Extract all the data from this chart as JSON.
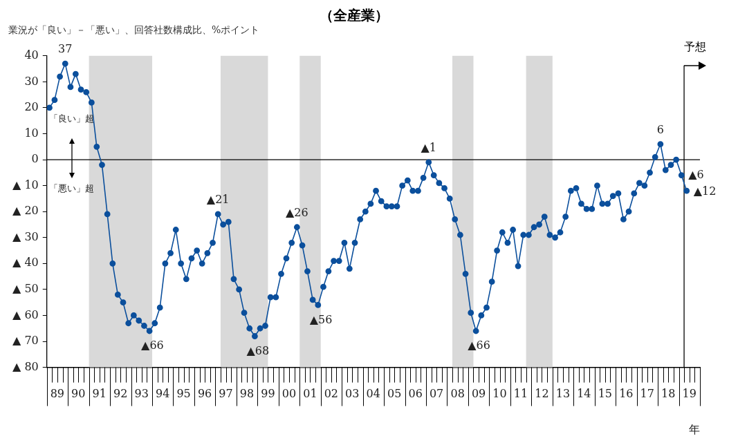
{
  "chart_data": {
    "type": "line",
    "title": "（全産業）",
    "subtitle": "業況が「良い」－「悪い」、回答社数構成比、%ポイント",
    "xlabel": "年",
    "x": [
      "1989-02-15",
      "1989-05-15",
      "1989-08-15",
      "1989-11-15",
      "1990-02-15",
      "1990-05-15",
      "1990-08-15",
      "1990-11-15",
      "1991-02-15",
      "1991-05-15",
      "1991-08-15",
      "1991-11-15",
      "1992-02-15",
      "1992-05-15",
      "1992-08-15",
      "1992-11-15",
      "1993-02-15",
      "1993-05-15",
      "1993-08-15",
      "1993-11-15",
      "1994-02-15",
      "1994-05-15",
      "1994-08-15",
      "1994-11-15",
      "1995-02-15",
      "1995-05-15",
      "1995-08-15",
      "1995-11-15",
      "1996-02-15",
      "1996-05-15",
      "1996-08-15",
      "1996-11-15",
      "1997-02-15",
      "1997-05-15",
      "1997-08-15",
      "1997-11-15",
      "1998-02-15",
      "1998-05-15",
      "1998-08-15",
      "1998-11-15",
      "1999-02-15",
      "1999-05-15",
      "1999-08-15",
      "1999-11-15",
      "2000-02-15",
      "2000-05-15",
      "2000-08-15",
      "2000-11-15",
      "2001-02-15",
      "2001-05-15",
      "2001-08-15",
      "2001-11-15",
      "2002-02-15",
      "2002-05-15",
      "2002-08-15",
      "2002-11-15",
      "2003-02-15",
      "2003-05-15",
      "2003-08-15",
      "2003-11-15",
      "2004-02-15",
      "2004-05-15",
      "2004-08-15",
      "2004-11-15",
      "2005-02-15",
      "2005-05-15",
      "2005-08-15",
      "2005-11-15",
      "2006-02-15",
      "2006-05-15",
      "2006-08-15",
      "2006-11-15",
      "2007-02-15",
      "2007-05-15",
      "2007-08-15",
      "2007-11-15",
      "2008-02-15",
      "2008-05-15",
      "2008-08-15",
      "2008-11-15",
      "2009-02-15",
      "2009-05-15",
      "2009-08-15",
      "2009-11-15",
      "2010-02-15",
      "2010-05-15",
      "2010-08-15",
      "2010-11-15",
      "2011-02-15",
      "2011-05-15",
      "2011-08-15",
      "2011-11-15",
      "2012-02-15",
      "2012-05-15",
      "2012-08-15",
      "2012-11-15",
      "2013-02-15",
      "2013-05-15",
      "2013-08-15",
      "2013-11-15",
      "2014-02-15",
      "2014-05-15",
      "2014-08-15",
      "2014-11-15",
      "2015-02-15",
      "2015-05-15",
      "2015-08-15",
      "2015-11-15",
      "2016-02-15",
      "2016-05-15",
      "2016-08-15",
      "2016-11-15",
      "2017-02-15",
      "2017-05-15",
      "2017-08-15",
      "2017-11-15",
      "2018-02-15",
      "2018-05-15",
      "2018-08-15",
      "2018-11-15",
      "2019-02-15",
      "2019-05-15"
    ],
    "series": [
      {
        "color": "#0b4f9c",
        "values": [
          20,
          23,
          32,
          37,
          28,
          33,
          27,
          26,
          22,
          5,
          -2,
          -21,
          -40,
          -52,
          -55,
          -63,
          -60,
          -62,
          -64,
          -66,
          -63,
          -57,
          -40,
          -36,
          -27,
          -40,
          -46,
          -38,
          -35,
          -40,
          -36,
          -32,
          -21,
          -25,
          -24,
          -46,
          -50,
          -59,
          -65,
          -68,
          -65,
          -64,
          -53,
          -53,
          -44,
          -38,
          -32,
          -26,
          -33,
          -43,
          -54,
          -56,
          -49,
          -43,
          -39,
          -39,
          -32,
          -42,
          -32,
          -23,
          -20,
          -17,
          -12,
          -16,
          -18,
          -18,
          -18,
          -10,
          -8,
          -12,
          -12,
          -7,
          -1,
          -6,
          -9,
          -11,
          -15,
          -23,
          -29,
          -44,
          -59,
          -66,
          -60,
          -57,
          -47,
          -35,
          -28,
          -32,
          -27,
          -41,
          -29,
          -29,
          -26,
          -25,
          -22,
          -29,
          -30,
          -28,
          -22,
          -12,
          -11,
          -17,
          -19,
          -19,
          -10,
          -17,
          -17,
          -14,
          -13,
          -23,
          -20,
          -13,
          -9,
          -10,
          -5,
          1,
          6,
          -4,
          -2,
          0,
          -6,
          -12
        ]
      }
    ],
    "xlim": [
      "1989-01-01",
      "2020-01-01"
    ],
    "xticks": [
      {
        "value": "1989-07-01",
        "label": "89"
      },
      {
        "value": "1990-07-01",
        "label": "90"
      },
      {
        "value": "1991-07-01",
        "label": "91"
      },
      {
        "value": "1992-07-01",
        "label": "92"
      },
      {
        "value": "1993-07-01",
        "label": "93"
      },
      {
        "value": "1994-07-01",
        "label": "94"
      },
      {
        "value": "1995-07-01",
        "label": "95"
      },
      {
        "value": "1996-07-01",
        "label": "96"
      },
      {
        "value": "1997-07-01",
        "label": "97"
      },
      {
        "value": "1998-07-01",
        "label": "98"
      },
      {
        "value": "1999-07-01",
        "label": "99"
      },
      {
        "value": "2000-07-01",
        "label": "00"
      },
      {
        "value": "2001-07-01",
        "label": "01"
      },
      {
        "value": "2002-07-01",
        "label": "02"
      },
      {
        "value": "2003-07-01",
        "label": "03"
      },
      {
        "value": "2004-07-01",
        "label": "04"
      },
      {
        "value": "2005-07-01",
        "label": "05"
      },
      {
        "value": "2006-07-01",
        "label": "06"
      },
      {
        "value": "2007-07-01",
        "label": "07"
      },
      {
        "value": "2008-07-01",
        "label": "08"
      },
      {
        "value": "2009-07-01",
        "label": "09"
      },
      {
        "value": "2010-07-01",
        "label": "10"
      },
      {
        "value": "2011-07-01",
        "label": "11"
      },
      {
        "value": "2012-07-01",
        "label": "12"
      },
      {
        "value": "2013-07-01",
        "label": "13"
      },
      {
        "value": "2014-07-01",
        "label": "14"
      },
      {
        "value": "2015-07-01",
        "label": "15"
      },
      {
        "value": "2016-07-01",
        "label": "16"
      },
      {
        "value": "2017-07-01",
        "label": "17"
      },
      {
        "value": "2018-07-01",
        "label": "18"
      },
      {
        "value": "2019-07-01",
        "label": "19"
      }
    ],
    "ylim": [
      -80,
      40
    ],
    "yticks": [
      {
        "value": -80,
        "label": "▲ 80"
      },
      {
        "value": -70,
        "label": "▲ 70"
      },
      {
        "value": -60,
        "label": "▲ 60"
      },
      {
        "value": -50,
        "label": "▲ 50"
      },
      {
        "value": -40,
        "label": "▲ 40"
      },
      {
        "value": -30,
        "label": "▲ 30"
      },
      {
        "value": -20,
        "label": "▲ 20"
      },
      {
        "value": -10,
        "label": "▲ 10"
      },
      0,
      10,
      20,
      30,
      40
    ],
    "bands": [
      {
        "axis": "x",
        "from": "1991-01-01",
        "to": "1994-01-01",
        "color": "#d9d9d9"
      },
      {
        "axis": "x",
        "from": "1997-04-01",
        "to": "1999-07-01",
        "color": "#d9d9d9"
      },
      {
        "axis": "x",
        "from": "2001-01-01",
        "to": "2002-01-01",
        "color": "#d9d9d9"
      },
      {
        "axis": "x",
        "from": "2008-04-01",
        "to": "2009-04-01",
        "color": "#d9d9d9"
      },
      {
        "axis": "x",
        "from": "2011-10-01",
        "to": "2013-01-01",
        "color": "#d9d9d9"
      }
    ],
    "ref_lines": [
      {
        "axis": "y",
        "value": 0,
        "color": "#000000"
      },
      {
        "axis": "x",
        "value": "2019-04-01",
        "label": "予想",
        "color": "#000000"
      }
    ],
    "annotations": [
      {
        "text": "37",
        "x": "1989-11-15",
        "y": 37
      },
      {
        "text": "▲66",
        "x": "1993-11-15",
        "y": -66
      },
      {
        "text": "▲21",
        "x": "1997-02-15",
        "y": -21
      },
      {
        "text": "▲68",
        "x": "1998-11-15",
        "y": -68
      },
      {
        "text": "▲26",
        "x": "2000-11-15",
        "y": -26
      },
      {
        "text": "▲56",
        "x": "2001-11-15",
        "y": -56
      },
      {
        "text": "▲1",
        "x": "2007-02-15",
        "y": -1
      },
      {
        "text": "▲66",
        "x": "2009-05-15",
        "y": -66
      },
      {
        "text": "6",
        "x": "2018-02-15",
        "y": 6
      },
      {
        "text": "▲6",
        "x": "2019-02-15",
        "y": -6
      },
      {
        "text": "▲12",
        "x": "2019-05-15",
        "y": -12
      },
      "「良い」超",
      "「悪い」超"
    ],
    "grid": false,
    "legend": false,
    "marker": "circle",
    "line_style": "solid"
  }
}
